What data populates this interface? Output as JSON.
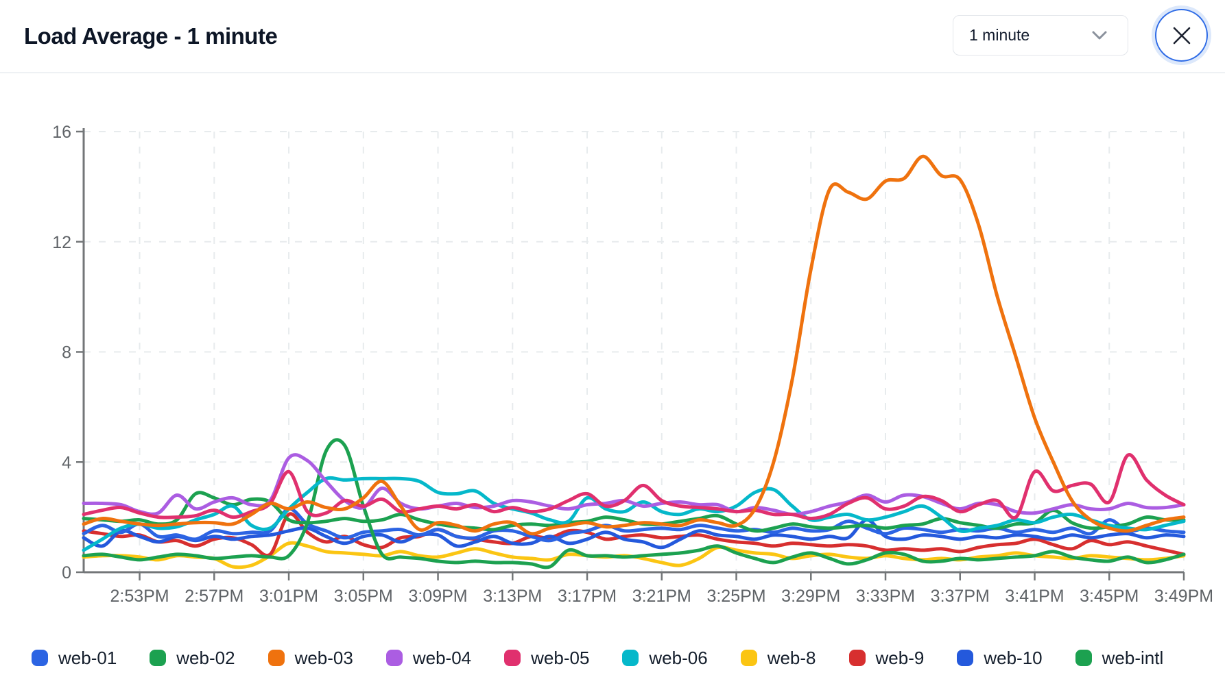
{
  "header": {
    "title": "Load Average - 1 minute",
    "interval_select": {
      "value": "1 minute"
    },
    "close_button": "close"
  },
  "chart_data": {
    "type": "line",
    "title": "Load Average - 1 minute",
    "xlabel": "",
    "ylabel": "",
    "ylim": [
      0,
      16
    ],
    "yticks": [
      0,
      4,
      8,
      12,
      16
    ],
    "grid": true,
    "legend_position": "bottom",
    "x_start": "2:50PM",
    "x_step_minutes": 1,
    "points_per_series": 60,
    "xtick_labels": [
      "2:53PM",
      "2:57PM",
      "3:01PM",
      "3:05PM",
      "3:09PM",
      "3:13PM",
      "3:17PM",
      "3:21PM",
      "3:25PM",
      "3:29PM",
      "3:33PM",
      "3:37PM",
      "3:41PM",
      "3:45PM",
      "3:49PM"
    ],
    "xtick_first_index": 3,
    "xtick_index_step": 4,
    "axis_color": "#737678",
    "grid_color": "#e7ebed",
    "tick_label_color": "#5f6367",
    "draw_order": [
      "web-8",
      "web-9",
      "web-10",
      "web-01",
      "web-intl",
      "web-02",
      "web-06",
      "web-04",
      "web-05",
      "web-03"
    ],
    "series": [
      {
        "name": "web-01",
        "color": "#2c64e3",
        "values": [
          1.4,
          1.7,
          1.45,
          1.75,
          1.3,
          1.35,
          1.2,
          1.5,
          1.4,
          1.45,
          1.5,
          2.3,
          1.75,
          1.5,
          1.25,
          1.45,
          1.5,
          1.55,
          1.35,
          1.55,
          1.3,
          1.25,
          1.5,
          1.5,
          1.3,
          1.15,
          1.4,
          1.5,
          1.7,
          1.5,
          1.55,
          1.6,
          1.55,
          1.7,
          1.6,
          1.5,
          1.55,
          1.45,
          1.6,
          1.5,
          1.55,
          1.85,
          1.6,
          1.4,
          1.6,
          1.55,
          1.45,
          1.55,
          1.5,
          1.6,
          1.45,
          1.55,
          1.45,
          1.6,
          1.4,
          1.9,
          1.5,
          1.6,
          1.5,
          1.45
        ]
      },
      {
        "name": "web-02",
        "color": "#1ca150",
        "values": [
          0.6,
          0.65,
          0.55,
          0.45,
          0.55,
          0.65,
          0.6,
          0.5,
          0.55,
          0.6,
          0.55,
          0.6,
          1.8,
          4.4,
          4.6,
          2.4,
          0.65,
          0.55,
          0.5,
          0.4,
          0.35,
          0.4,
          0.35,
          0.35,
          0.3,
          0.2,
          0.8,
          0.6,
          0.6,
          0.55,
          0.6,
          0.65,
          0.7,
          0.8,
          0.95,
          0.7,
          0.5,
          0.35,
          0.55,
          0.7,
          0.5,
          0.3,
          0.45,
          0.7,
          0.65,
          0.4,
          0.4,
          0.5,
          0.45,
          0.5,
          0.55,
          0.6,
          0.75,
          0.55,
          0.45,
          0.4,
          0.55,
          0.35,
          0.45,
          0.65
        ]
      },
      {
        "name": "web-03",
        "color": "#ef720e",
        "values": [
          1.75,
          1.95,
          1.85,
          1.75,
          1.7,
          1.75,
          1.8,
          1.8,
          1.75,
          2.1,
          2.5,
          2.3,
          2.55,
          2.35,
          2.3,
          2.7,
          3.3,
          2.4,
          1.55,
          1.8,
          1.7,
          1.5,
          1.75,
          1.8,
          1.4,
          1.6,
          1.7,
          1.8,
          1.65,
          1.7,
          1.8,
          1.75,
          1.7,
          1.9,
          1.8,
          1.7,
          2.3,
          4.0,
          7.0,
          11.0,
          13.9,
          13.8,
          13.55,
          14.2,
          14.3,
          15.1,
          14.4,
          14.25,
          12.6,
          10.0,
          7.8,
          5.6,
          4.0,
          2.6,
          1.9,
          1.6,
          1.5,
          1.7,
          1.9,
          2.0
        ]
      },
      {
        "name": "web-04",
        "color": "#ab5de2",
        "values": [
          2.5,
          2.5,
          2.45,
          2.2,
          2.15,
          2.8,
          2.3,
          2.55,
          2.7,
          2.45,
          2.6,
          4.15,
          4.05,
          3.3,
          2.6,
          2.35,
          3.05,
          2.5,
          2.3,
          2.4,
          2.5,
          2.35,
          2.4,
          2.6,
          2.55,
          2.4,
          2.3,
          2.45,
          2.5,
          2.6,
          2.4,
          2.5,
          2.55,
          2.45,
          2.45,
          2.2,
          2.35,
          2.25,
          2.1,
          2.2,
          2.4,
          2.55,
          2.8,
          2.55,
          2.8,
          2.75,
          2.5,
          2.3,
          2.5,
          2.45,
          2.2,
          2.15,
          2.3,
          2.45,
          2.3,
          2.3,
          2.5,
          2.35,
          2.35,
          2.45
        ]
      },
      {
        "name": "web-05",
        "color": "#e0306e",
        "values": [
          2.1,
          2.25,
          2.35,
          2.15,
          2.0,
          2.0,
          2.05,
          2.25,
          2.0,
          2.2,
          2.5,
          3.65,
          2.2,
          2.15,
          2.6,
          2.4,
          2.65,
          2.2,
          2.3,
          2.4,
          2.3,
          2.45,
          2.2,
          2.35,
          2.2,
          2.3,
          2.6,
          2.85,
          2.4,
          2.6,
          3.15,
          2.6,
          2.4,
          2.35,
          2.3,
          2.2,
          2.25,
          2.1,
          2.1,
          1.95,
          2.1,
          2.5,
          2.7,
          2.3,
          2.4,
          2.75,
          2.6,
          2.2,
          2.45,
          2.6,
          2.0,
          3.65,
          2.95,
          3.15,
          3.2,
          2.55,
          4.25,
          3.35,
          2.8,
          2.45
        ]
      },
      {
        "name": "web-06",
        "color": "#05b8ca",
        "values": [
          0.8,
          1.2,
          1.6,
          1.75,
          1.6,
          1.65,
          1.9,
          2.1,
          2.4,
          1.7,
          1.6,
          2.3,
          2.9,
          3.4,
          3.35,
          3.4,
          3.4,
          3.4,
          3.3,
          2.9,
          2.85,
          2.95,
          2.5,
          2.3,
          2.15,
          1.9,
          1.85,
          2.7,
          2.3,
          2.2,
          2.55,
          2.2,
          2.1,
          2.3,
          2.2,
          2.4,
          2.9,
          3.0,
          2.4,
          1.9,
          2.0,
          2.1,
          1.9,
          2.0,
          2.2,
          2.4,
          2.0,
          1.5,
          1.6,
          1.7,
          1.9,
          1.8,
          2.0,
          2.1,
          1.9,
          1.7,
          1.6,
          1.55,
          1.7,
          1.85
        ]
      },
      {
        "name": "web-8",
        "color": "#fbc513",
        "values": [
          0.55,
          0.6,
          0.6,
          0.55,
          0.45,
          0.6,
          0.55,
          0.5,
          0.2,
          0.25,
          0.6,
          1.05,
          0.95,
          0.75,
          0.7,
          0.65,
          0.6,
          0.75,
          0.6,
          0.55,
          0.7,
          0.85,
          0.7,
          0.55,
          0.5,
          0.45,
          0.65,
          0.6,
          0.55,
          0.6,
          0.5,
          0.35,
          0.25,
          0.5,
          0.9,
          0.8,
          0.7,
          0.65,
          0.5,
          0.6,
          0.65,
          0.55,
          0.5,
          0.6,
          0.5,
          0.45,
          0.5,
          0.45,
          0.55,
          0.6,
          0.7,
          0.6,
          0.55,
          0.5,
          0.6,
          0.55,
          0.5,
          0.45,
          0.5,
          0.6
        ]
      },
      {
        "name": "web-9",
        "color": "#d72f2f",
        "values": [
          1.5,
          1.4,
          1.3,
          1.35,
          1.1,
          1.15,
          0.95,
          1.2,
          1.25,
          1.0,
          0.65,
          2.1,
          1.45,
          1.1,
          1.3,
          1.0,
          0.9,
          1.25,
          1.3,
          1.55,
          1.3,
          1.2,
          1.1,
          1.05,
          1.3,
          1.25,
          1.5,
          1.45,
          1.2,
          1.3,
          1.35,
          1.25,
          1.3,
          1.35,
          1.2,
          1.1,
          1.05,
          0.95,
          1.05,
          1.0,
          0.95,
          1.0,
          0.95,
          0.8,
          0.85,
          0.8,
          0.85,
          0.75,
          0.9,
          1.0,
          1.05,
          1.2,
          1.0,
          0.85,
          1.15,
          1.0,
          1.1,
          0.95,
          0.8,
          0.65
        ]
      },
      {
        "name": "web-10",
        "color": "#2459dc",
        "values": [
          1.25,
          0.95,
          1.5,
          1.3,
          1.1,
          1.3,
          1.15,
          1.3,
          1.2,
          1.3,
          1.35,
          1.5,
          1.6,
          1.3,
          1.05,
          1.3,
          1.35,
          1.1,
          1.35,
          1.35,
          0.95,
          1.1,
          1.3,
          1.05,
          1.05,
          1.3,
          1.05,
          1.2,
          1.45,
          1.2,
          1.1,
          0.9,
          1.2,
          1.5,
          1.35,
          1.3,
          1.2,
          1.35,
          1.3,
          1.2,
          1.3,
          1.25,
          1.9,
          1.3,
          1.2,
          1.35,
          1.3,
          1.2,
          1.3,
          1.25,
          1.35,
          1.3,
          1.2,
          1.35,
          1.25,
          1.35,
          1.4,
          1.25,
          1.35,
          1.3
        ]
      },
      {
        "name": "web-intl",
        "color": "#1ca150",
        "values": [
          1.95,
          1.9,
          1.85,
          1.9,
          1.75,
          1.9,
          2.85,
          2.7,
          2.45,
          2.65,
          2.55,
          1.9,
          1.8,
          1.85,
          1.95,
          1.85,
          1.9,
          2.1,
          1.9,
          1.75,
          1.65,
          1.6,
          1.55,
          1.7,
          1.75,
          1.7,
          1.8,
          1.85,
          2.0,
          1.9,
          1.75,
          1.75,
          1.85,
          1.95,
          2.05,
          1.75,
          1.5,
          1.6,
          1.75,
          1.65,
          1.6,
          1.65,
          1.7,
          1.6,
          1.7,
          1.75,
          1.95,
          1.8,
          1.7,
          1.6,
          1.75,
          1.8,
          2.25,
          1.8,
          1.6,
          1.65,
          1.75,
          2.0,
          1.9,
          1.9
        ]
      }
    ]
  }
}
